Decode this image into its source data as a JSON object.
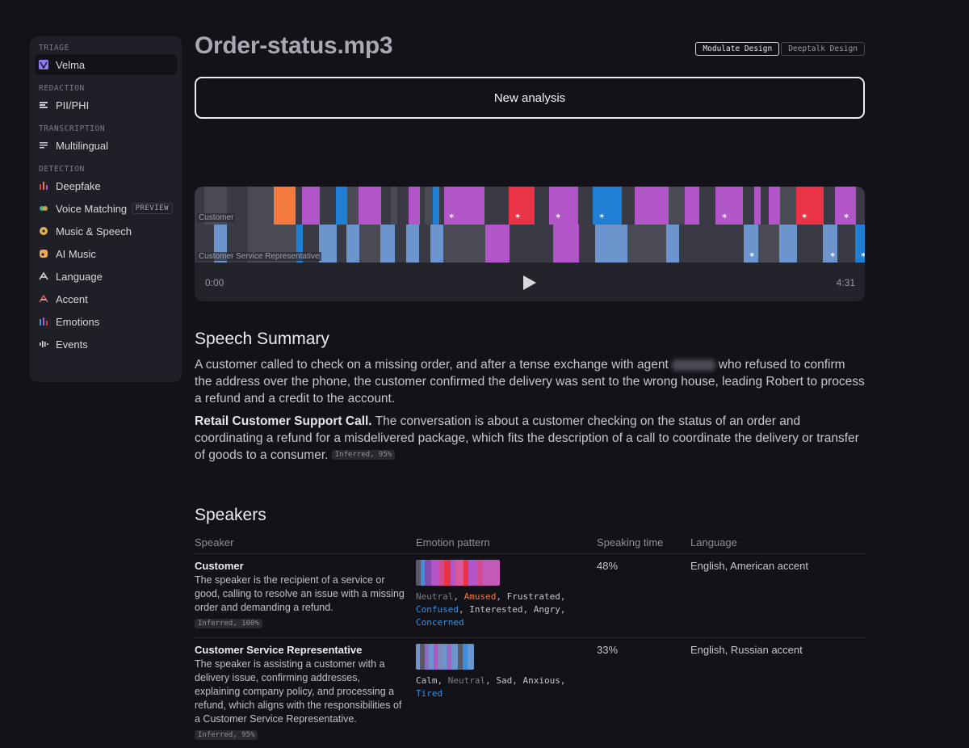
{
  "sidebar": {
    "sections": [
      {
        "label": "TRIAGE",
        "items": [
          {
            "label": "Velma",
            "icon": "velma-logo-icon",
            "active": true
          }
        ]
      },
      {
        "label": "REDACTION",
        "items": [
          {
            "label": "PII/PHI",
            "icon": "redact-icon"
          }
        ]
      },
      {
        "label": "TRANSCRIPTION",
        "items": [
          {
            "label": "Multilingual",
            "icon": "text-lines-icon"
          }
        ]
      },
      {
        "label": "DETECTION",
        "items": [
          {
            "label": "Deepfake",
            "icon": "deepfake-icon"
          },
          {
            "label": "Voice Matching",
            "icon": "voice-matching-icon",
            "badge": "PREVIEW"
          },
          {
            "label": "Music & Speech",
            "icon": "music-speech-icon"
          },
          {
            "label": "AI Music",
            "icon": "ai-music-icon"
          },
          {
            "label": "Language",
            "icon": "language-icon"
          },
          {
            "label": "Accent",
            "icon": "accent-icon"
          },
          {
            "label": "Emotions",
            "icon": "emotions-icon"
          },
          {
            "label": "Events",
            "icon": "events-icon"
          }
        ]
      }
    ]
  },
  "header": {
    "title": "Order-status.mp3",
    "toggles": [
      "Modulate Design",
      "Deeptalk Design"
    ],
    "new_analysis_label": "New analysis"
  },
  "timeline": {
    "lanes": [
      "Customer",
      "Customer Service Representative"
    ],
    "start": "0:00",
    "end": "4:31",
    "colors": {
      "neutral_a": "#3a3a44",
      "neutral_b": "#4a4a55",
      "purple": "#b155c9",
      "red": "#ea3347",
      "orange": "#f47a3f",
      "blue": "#1f7fd4",
      "light_blue": "#6b95cc"
    }
  },
  "summary": {
    "heading": "Speech Summary",
    "p1_before": "A customer called to check on a missing order, and after a tense exchange with agent",
    "p1_after": "who refused to confirm the address over the phone, the customer confirmed the delivery was sent to the wrong house, leading Robert to process a refund and a credit to the account.",
    "p2_bold": "Retail Customer Support Call.",
    "p2_text": "The conversation is about a customer checking on the status of an order and coordinating a refund for a misdelivered package, which fits the description of a call to coordinate the delivery or transfer of goods to a consumer.",
    "p2_tag": "Inferred, 95%"
  },
  "speakers": {
    "heading": "Speakers",
    "columns": [
      "Speaker",
      "Emotion pattern",
      "Speaking time",
      "Language"
    ],
    "rows": [
      {
        "name": "Customer",
        "description": "The speaker is the recipient of a service or good, calling to resolve an issue with a missing order and demanding a refund.",
        "tag": "Inferred, 100%",
        "emotions": [
          {
            "label": "Neutral",
            "color": "#7d7d88"
          },
          {
            "label": "Amused",
            "color": "#f47a3f"
          },
          {
            "label": "Frustrated",
            "color": "#c6c6ce"
          },
          {
            "label": "Confused",
            "color": "#3d8fdb"
          },
          {
            "label": "Interested",
            "color": "#c6c6ce"
          },
          {
            "label": "Angry",
            "color": "#c6c6ce"
          },
          {
            "label": "Concerned",
            "color": "#3d8fdb"
          }
        ],
        "speaking_time": "48%",
        "language": "English, American accent"
      },
      {
        "name": "Customer Service Representative",
        "description": "The speaker is assisting a customer with a delivery issue, confirming addresses, explaining company policy, and processing a refund, which aligns with the responsibilities of a Customer Service Representative.",
        "tag": "Inferred, 95%",
        "emotions": [
          {
            "label": "Calm",
            "color": "#c6c6ce"
          },
          {
            "label": "Neutral",
            "color": "#7d7d88"
          },
          {
            "label": "Sad",
            "color": "#c6c6ce"
          },
          {
            "label": "Anxious",
            "color": "#c6c6ce"
          },
          {
            "label": "Tired",
            "color": "#3d8fdb"
          }
        ],
        "speaking_time": "33%",
        "language": "English, Russian accent"
      }
    ]
  }
}
